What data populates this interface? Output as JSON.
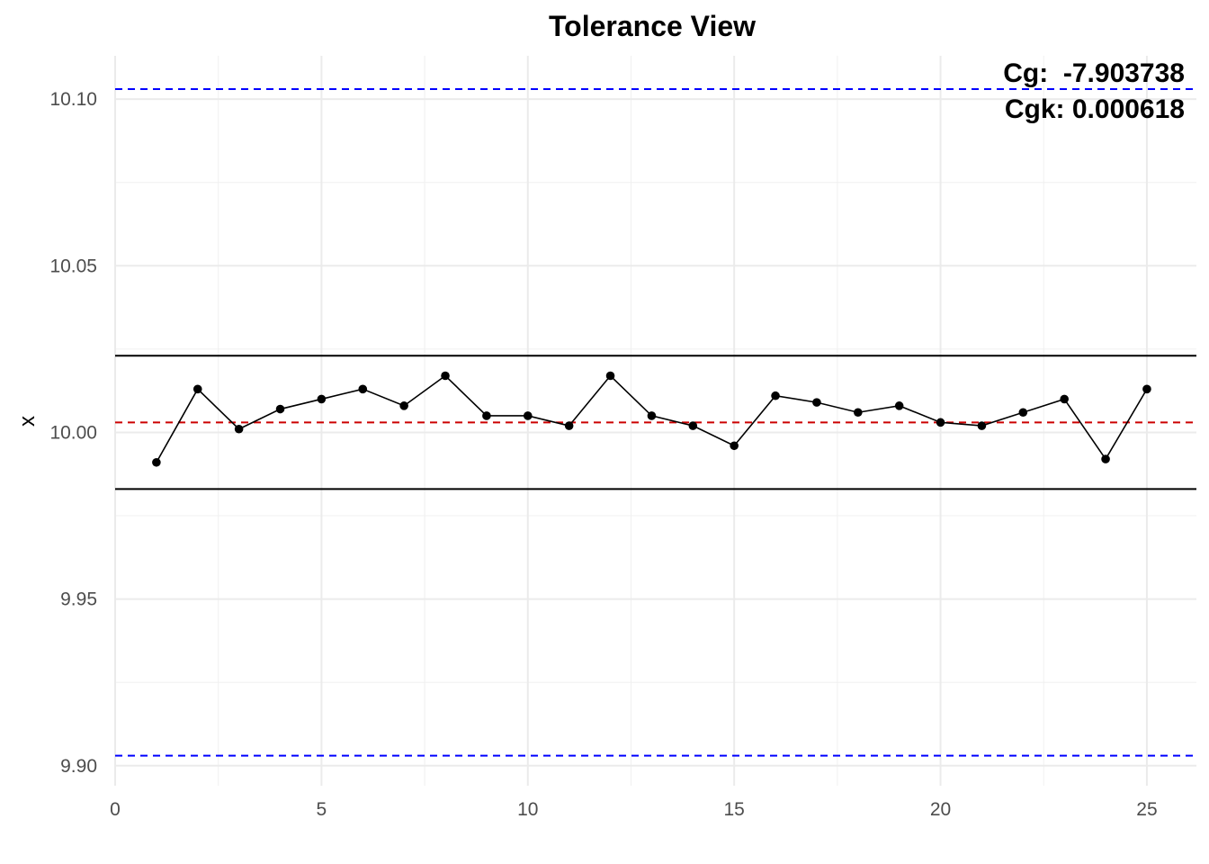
{
  "chart_data": {
    "type": "line",
    "title": "Tolerance View",
    "xlabel": "",
    "ylabel": "x",
    "xlim": [
      0,
      26.2
    ],
    "ylim": [
      9.894,
      10.113
    ],
    "x_ticks": [
      0,
      5,
      10,
      15,
      20,
      25
    ],
    "x_tick_labels": [
      "0",
      "5",
      "10",
      "15",
      "20",
      "25"
    ],
    "x_minor_ticks": [
      2.5,
      7.5,
      12.5,
      17.5,
      22.5
    ],
    "y_ticks": [
      9.9,
      9.95,
      10.0,
      10.05,
      10.1
    ],
    "y_tick_labels": [
      "9.90",
      "9.95",
      "10.00",
      "10.05",
      "10.10"
    ],
    "y_minor_ticks": [
      9.925,
      9.975,
      10.025,
      10.075
    ],
    "grid": true,
    "series": [
      {
        "x": [
          1,
          2,
          3,
          4,
          5,
          6,
          7,
          8,
          9,
          10,
          11,
          12,
          13,
          14,
          15,
          16,
          17,
          18,
          19,
          20,
          21,
          22,
          23,
          24,
          25
        ],
        "values": [
          9.991,
          10.013,
          10.001,
          10.007,
          10.01,
          10.013,
          10.008,
          10.017,
          10.005,
          10.005,
          10.002,
          10.017,
          10.005,
          10.002,
          9.996,
          10.011,
          10.009,
          10.006,
          10.008,
          10.003,
          10.002,
          10.006,
          10.01,
          9.992,
          10.013
        ],
        "color": "#000000"
      }
    ],
    "reference_lines": [
      {
        "y": 10.103,
        "color": "#0000ff",
        "style": "dashed"
      },
      {
        "y": 9.903,
        "color": "#0000ff",
        "style": "dashed"
      },
      {
        "y": 10.023,
        "color": "#000000",
        "style": "solid"
      },
      {
        "y": 9.983,
        "color": "#000000",
        "style": "solid"
      },
      {
        "y": 10.003,
        "color": "#cc0000",
        "style": "dashed"
      }
    ],
    "annotations": [
      {
        "text": "Cg:  -7.903738",
        "position": "top-right"
      },
      {
        "text": "Cgk: 0.000618",
        "position": "top-right"
      }
    ]
  }
}
